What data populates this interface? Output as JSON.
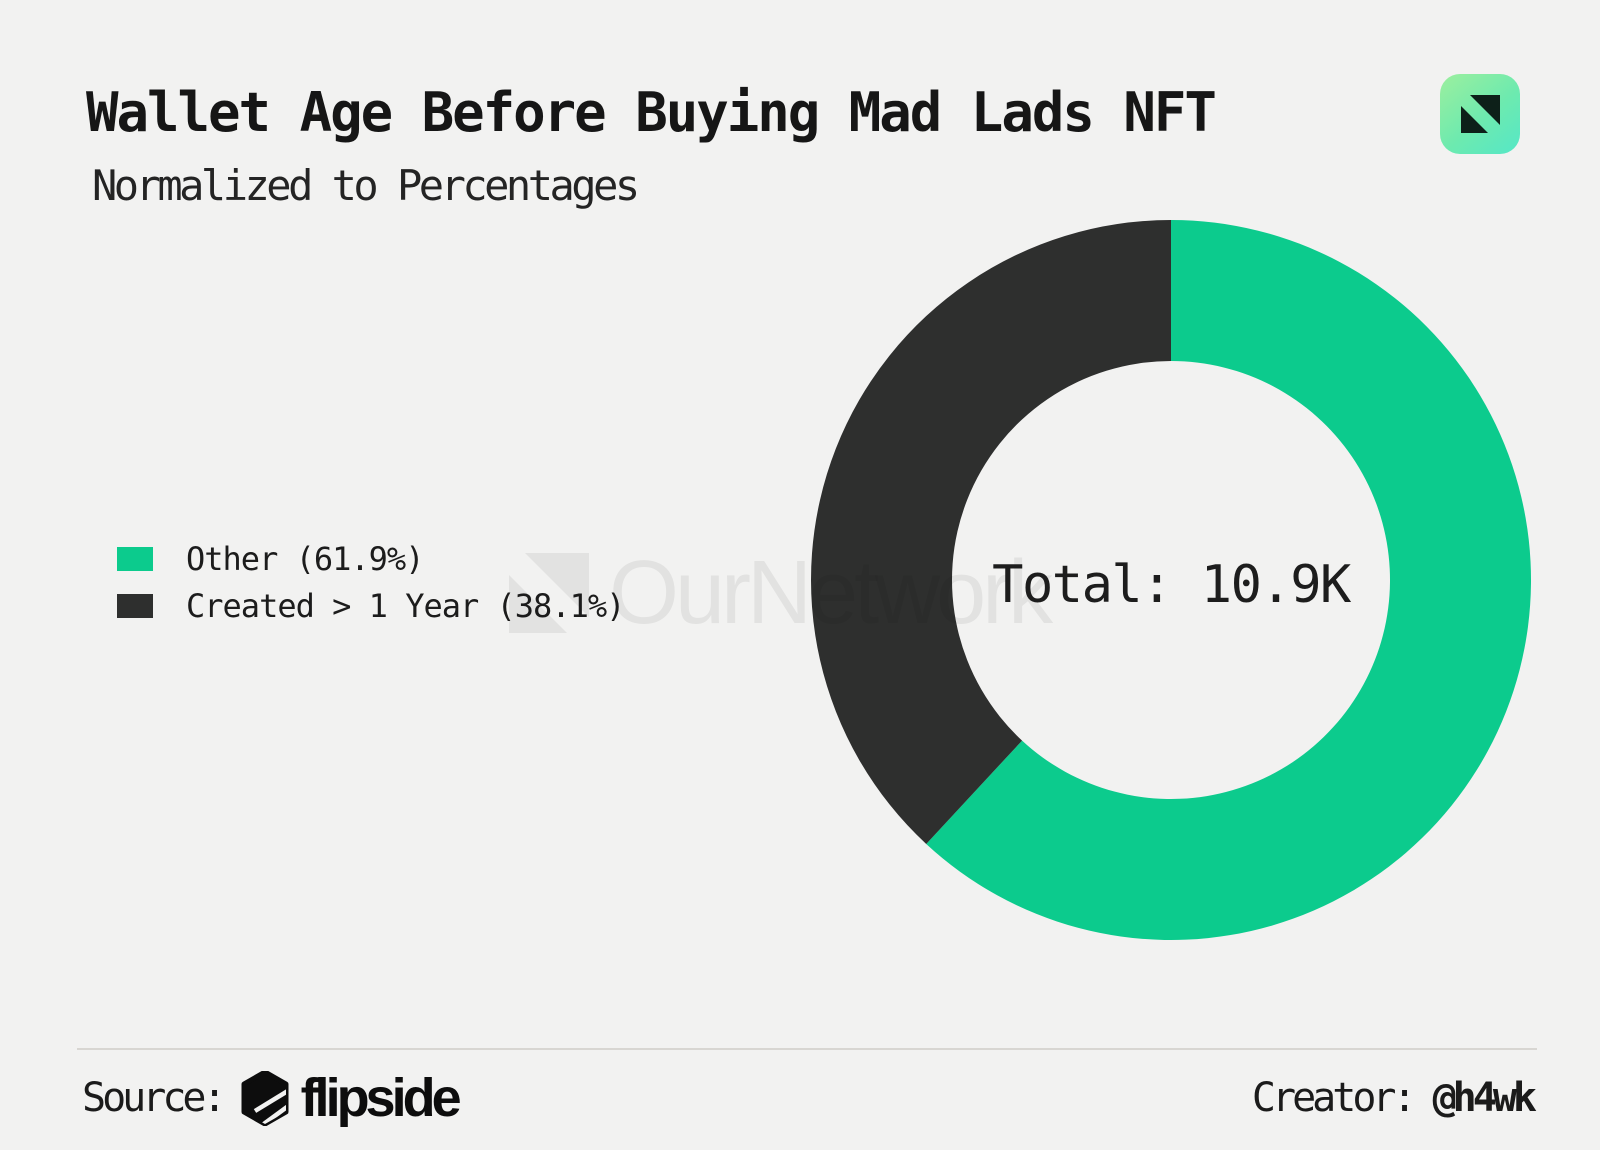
{
  "header": {
    "title": "Wallet Age Before Buying Mad Lads NFT",
    "subtitle": "Normalized to Percentages"
  },
  "legend": {
    "items": [
      {
        "label": "Other (61.9%)",
        "color": "#0CCB8D"
      },
      {
        "label": "Created > 1 Year (38.1%)",
        "color": "#2E2F2E"
      }
    ]
  },
  "chart_data": {
    "type": "pie",
    "donut": true,
    "title": "Wallet Age Before Buying Mad Lads NFT",
    "subtitle": "Normalized to Percentages",
    "categories": [
      "Other",
      "Created > 1 Year"
    ],
    "values": [
      61.9,
      38.1
    ],
    "unit": "%",
    "colors": [
      "#0CCB8D",
      "#2E2F2E"
    ],
    "start_angle": "12 o'clock",
    "direction": "clockwise",
    "inner_radius_ratio": 0.61,
    "legend_position": "left",
    "center_label": "Total: 10.9K",
    "total": "10.9K"
  },
  "watermark": {
    "text": "OurNetwork"
  },
  "footer": {
    "source_label": "Source:",
    "source_name": "flipside",
    "creator_label": "Creator:",
    "creator_handle": "@h4wk"
  },
  "colors": {
    "background": "#F2F2F1",
    "text": "#1B1B1B",
    "divider": "#D8D6D2",
    "icon_gradient_start": "#9CEF9E",
    "icon_gradient_end": "#55E7C7",
    "icon_glyph": "#0D2019"
  }
}
